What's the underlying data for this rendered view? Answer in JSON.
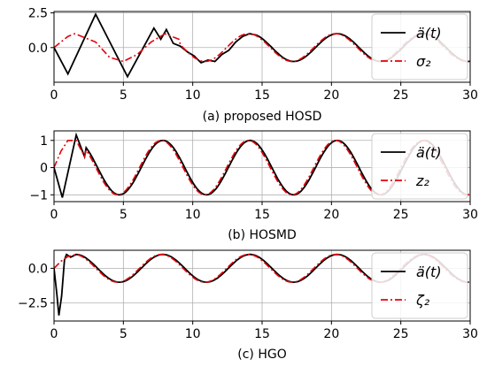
{
  "chart_data": [
    {
      "type": "line",
      "caption": "(a) proposed HOSD",
      "xlim": [
        0,
        30
      ],
      "ylim": [
        -2.5,
        2.6
      ],
      "xticks": [
        0,
        5,
        10,
        15,
        20,
        25,
        30
      ],
      "xtick_labels": [
        "0",
        "5",
        "10",
        "15",
        "20",
        "25",
        "30"
      ],
      "yticks": [
        0,
        2.5
      ],
      "ytick_labels": [
        "0.0",
        "2.5"
      ],
      "grid": true,
      "legend_position": "right",
      "series": [
        {
          "name": "ä(t)",
          "color": "#000000",
          "style": "solid",
          "points": [
            [
              0,
              0
            ],
            [
              1,
              -1.9
            ],
            [
              3,
              2.4
            ],
            [
              5.3,
              -2.1
            ],
            [
              7.2,
              1.4
            ],
            [
              7.7,
              0.6
            ],
            [
              8.1,
              1.3
            ],
            [
              8.6,
              0.3
            ],
            [
              9.1,
              0.1
            ],
            [
              9.6,
              -0.3
            ],
            [
              10.1,
              -0.6
            ],
            [
              10.6,
              -1.1
            ],
            [
              11.1,
              -0.9
            ],
            [
              11.6,
              -1.0
            ],
            [
              12.1,
              -0.5
            ],
            [
              12.6,
              -0.2
            ],
            [
              13.1,
              0.4
            ],
            [
              13.6,
              0.8
            ],
            [
              14.1,
              1.0
            ],
            [
              14.6,
              0.9
            ]
          ]
        },
        {
          "name": "σ₂",
          "color": "#e8000b",
          "style": "dashdot",
          "points": [
            [
              0,
              0
            ],
            [
              1,
              0.8
            ],
            [
              1.5,
              1.0
            ],
            [
              3,
              0.4
            ],
            [
              4,
              -0.7
            ],
            [
              5,
              -1.0
            ],
            [
              6,
              -0.5
            ],
            [
              7,
              0.4
            ],
            [
              8,
              1.0
            ],
            [
              9,
              0.6
            ]
          ]
        }
      ]
    },
    {
      "type": "line",
      "caption": "(b) HOSMD",
      "xlim": [
        0,
        30
      ],
      "ylim": [
        -1.25,
        1.35
      ],
      "xticks": [
        0,
        5,
        10,
        15,
        20,
        25,
        30
      ],
      "xtick_labels": [
        "0",
        "5",
        "10",
        "15",
        "20",
        "25",
        "30"
      ],
      "yticks": [
        -1,
        0,
        1
      ],
      "ytick_labels": [
        "−1",
        "0",
        "1"
      ],
      "grid": true,
      "legend_position": "right",
      "series": [
        {
          "name": "ä(t)",
          "color": "#000000",
          "style": "solid",
          "points": [
            [
              0,
              0
            ],
            [
              0.6,
              -1.1
            ],
            [
              1.6,
              1.2
            ],
            [
              2.2,
              0.4
            ]
          ]
        },
        {
          "name": "z₂",
          "color": "#e8000b",
          "style": "dashdot",
          "points": [
            [
              0,
              0
            ],
            [
              0.5,
              0.6
            ],
            [
              1.0,
              1.0
            ],
            [
              1.6,
              1.0
            ],
            [
              2.2,
              0.4
            ]
          ]
        }
      ]
    },
    {
      "type": "line",
      "caption": "(c) HGO",
      "xlim": [
        0,
        30
      ],
      "ylim": [
        -3.8,
        1.3
      ],
      "xticks": [
        0,
        5,
        10,
        15,
        20,
        25,
        30
      ],
      "xtick_labels": [
        "0",
        "5",
        "10",
        "15",
        "20",
        "25",
        "30"
      ],
      "yticks": [
        -2.5,
        0
      ],
      "ytick_labels": [
        "−2.5",
        "0.0"
      ],
      "grid": true,
      "legend_position": "right",
      "series": [
        {
          "name": "ä(t)",
          "color": "#000000",
          "style": "solid",
          "points": [
            [
              0,
              0
            ],
            [
              0.2,
              -1.8
            ],
            [
              0.35,
              -3.4
            ],
            [
              0.55,
              -2.0
            ],
            [
              0.75,
              0.6
            ],
            [
              0.9,
              1.0
            ],
            [
              1.2,
              0.8
            ],
            [
              1.6,
              1.0
            ]
          ]
        },
        {
          "name": "ζ₂",
          "color": "#e8000b",
          "style": "dashdot",
          "points": [
            [
              0,
              0
            ],
            [
              0.5,
              0.5
            ],
            [
              1.0,
              0.85
            ],
            [
              1.6,
              1.0
            ]
          ]
        }
      ]
    }
  ]
}
